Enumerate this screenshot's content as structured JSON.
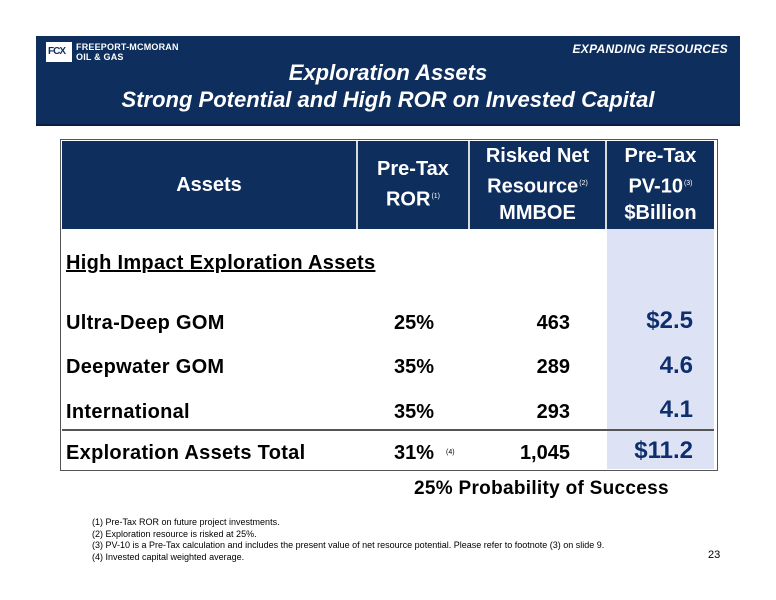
{
  "header": {
    "logo_mark": "FCX",
    "company_line1": "FREEPORT-MCMORAN",
    "company_line2": "OIL & GAS",
    "tagline": "EXPANDING RESOURCES",
    "title": "Exploration Assets",
    "subtitle": "Strong Potential and High ROR on Invested Capital"
  },
  "table": {
    "columns": {
      "assets": "Assets",
      "ror_line1": "Pre-Tax",
      "ror_line2": "ROR",
      "ror_note": "(1)",
      "res_line1": "Risked Net",
      "res_line2": "Resource",
      "res_note": "(2)",
      "res_line3": "MMBOE",
      "pv_line1": "Pre-Tax",
      "pv_line2": "PV-10",
      "pv_note": "(3)",
      "pv_line3": "$Billion"
    },
    "section_title": "High Impact Exploration Assets",
    "rows": [
      {
        "label": "Ultra-Deep GOM",
        "ror": "25%",
        "resource": "463",
        "pv": "$2.5"
      },
      {
        "label": "Deepwater GOM",
        "ror": "35%",
        "resource": "289",
        "pv": "4.6"
      },
      {
        "label": "International",
        "ror": "35%",
        "resource": "293",
        "pv": "4.1"
      }
    ],
    "total": {
      "label": "Exploration Assets Total",
      "ror": "31%",
      "ror_note": "(4)",
      "resource": "1,045",
      "pv": "$11.2"
    }
  },
  "probability": "25%  Probability of Success",
  "footnotes": [
    "(1) Pre-Tax ROR on future project investments.",
    "(2) Exploration resource is risked at 25%.",
    "(3) PV-10 is a Pre-Tax calculation and includes the present value of net resource potential. Please refer to footnote (3) on slide 9.",
    "(4) Invested capital weighted average."
  ],
  "page_number": "23",
  "colors": {
    "navy": "#0e2e5e",
    "pv_shade": "#dde3f5",
    "pv_text": "#0e2e6e"
  }
}
